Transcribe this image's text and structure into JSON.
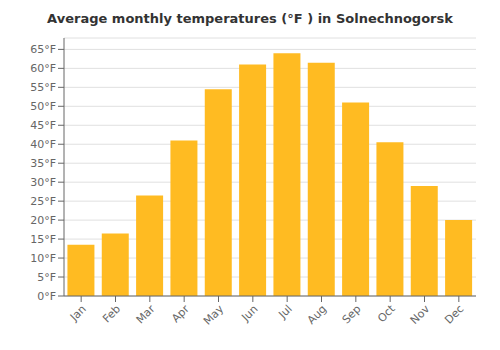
{
  "chart_data": {
    "type": "bar",
    "title": "Average monthly temperatures (°F ) in Solnechnogorsk",
    "categories": [
      "Jan",
      "Feb",
      "Mar",
      "Apr",
      "May",
      "Jun",
      "Jul",
      "Aug",
      "Sep",
      "Oct",
      "Nov",
      "Dec"
    ],
    "values": [
      13.5,
      16.5,
      26.5,
      41.0,
      54.5,
      61.0,
      64.0,
      61.5,
      51.0,
      40.5,
      29.0,
      20.0
    ],
    "color": "#FFBB22",
    "ylim": [
      0,
      68
    ],
    "yticks": [
      {
        "value": 0,
        "label": "0°F"
      },
      {
        "value": 5,
        "label": "5°F"
      },
      {
        "value": 10,
        "label": "10°F"
      },
      {
        "value": 15,
        "label": "15°F"
      },
      {
        "value": 20,
        "label": "20°F"
      },
      {
        "value": 25,
        "label": "25°F"
      },
      {
        "value": 30,
        "label": "30°F"
      },
      {
        "value": 35,
        "label": "35°F"
      },
      {
        "value": 40,
        "label": "40°F"
      },
      {
        "value": 45,
        "label": "45°F"
      },
      {
        "value": 50,
        "label": "50°F"
      },
      {
        "value": 55,
        "label": "55°F"
      },
      {
        "value": 60,
        "label": "60°F"
      },
      {
        "value": 65,
        "label": "65°F"
      }
    ],
    "grid": true
  }
}
